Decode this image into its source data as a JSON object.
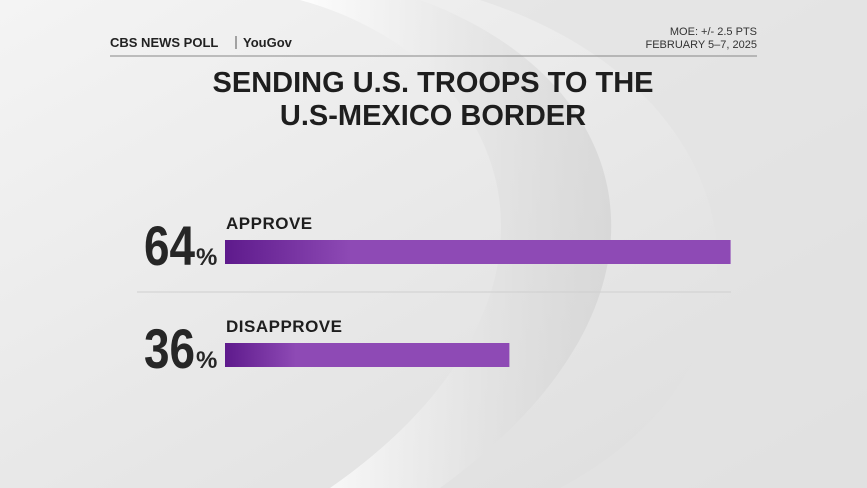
{
  "header": {
    "brand": "CBS NEWS POLL",
    "partner": "YouGov",
    "moe": "MOE: +/- 2.5 PTS",
    "date": "FEBRUARY 5–7, 2025"
  },
  "chart_data": {
    "type": "bar",
    "orientation": "horizontal",
    "title": [
      "SENDING U.S. TROOPS TO THE",
      "U.S-MEXICO BORDER"
    ],
    "categories": [
      "APPROVE",
      "DISAPPROVE"
    ],
    "values": [
      64,
      36
    ],
    "unit": "%",
    "color": "#8e4ab5"
  }
}
